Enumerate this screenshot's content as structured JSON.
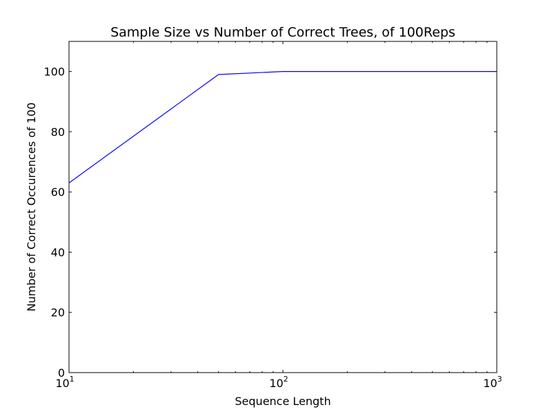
{
  "chart_data": {
    "type": "line",
    "title": "Sample Size vs Number of Correct Trees, of 100Reps",
    "xlabel": "Sequence Length",
    "ylabel": "Number of Correct Occurences of 100",
    "xscale": "log",
    "xlim": [
      10,
      1000
    ],
    "ylim": [
      0,
      110
    ],
    "grid": false,
    "legend": "none",
    "x_ticks": [
      {
        "value": 10,
        "base": "10",
        "exp": "1"
      },
      {
        "value": 100,
        "base": "10",
        "exp": "2"
      },
      {
        "value": 1000,
        "base": "10",
        "exp": "3"
      }
    ],
    "y_ticks": [
      {
        "value": 0,
        "label": "0"
      },
      {
        "value": 20,
        "label": "20"
      },
      {
        "value": 40,
        "label": "40"
      },
      {
        "value": 60,
        "label": "60"
      },
      {
        "value": 80,
        "label": "80"
      },
      {
        "value": 100,
        "label": "100"
      }
    ],
    "series": [
      {
        "color": "#0000ff",
        "x": [
          10,
          50,
          100,
          500,
          1000
        ],
        "y": [
          63,
          99,
          100,
          100,
          100
        ]
      }
    ]
  }
}
